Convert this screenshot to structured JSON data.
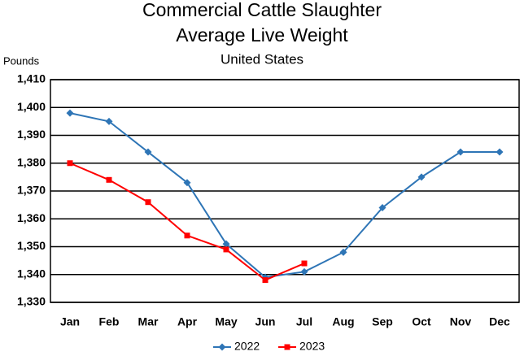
{
  "chart_data": {
    "type": "line",
    "title": [
      "Commercial Cattle Slaughter",
      "Average Live Weight"
    ],
    "subtitle": "United States",
    "y_label": "Pounds",
    "categories": [
      "Jan",
      "Feb",
      "Mar",
      "Apr",
      "May",
      "Jun",
      "Jul",
      "Aug",
      "Sep",
      "Oct",
      "Nov",
      "Dec"
    ],
    "series": [
      {
        "name": "2022",
        "color": "#2e75b6",
        "marker": "diamond",
        "values": [
          1398,
          1395,
          1384,
          1373,
          1351,
          1339,
          1341,
          1348,
          1364,
          1375,
          1384,
          1384
        ]
      },
      {
        "name": "2023",
        "color": "#ff0000",
        "marker": "square",
        "values": [
          1380,
          1374,
          1366,
          1354,
          1349,
          1338,
          1344,
          null,
          null,
          null,
          null,
          null
        ]
      }
    ],
    "ylim": [
      1330,
      1410
    ],
    "yticks": [
      {
        "value": 1330,
        "label": "1,330"
      },
      {
        "value": 1340,
        "label": "1,340"
      },
      {
        "value": 1350,
        "label": "1,350"
      },
      {
        "value": 1360,
        "label": "1,360"
      },
      {
        "value": 1370,
        "label": "1,370"
      },
      {
        "value": 1380,
        "label": "1,380"
      },
      {
        "value": 1390,
        "label": "1,390"
      },
      {
        "value": 1400,
        "label": "1,400"
      },
      {
        "value": 1410,
        "label": "1,410"
      }
    ],
    "grid": true,
    "legend": "bottom"
  }
}
